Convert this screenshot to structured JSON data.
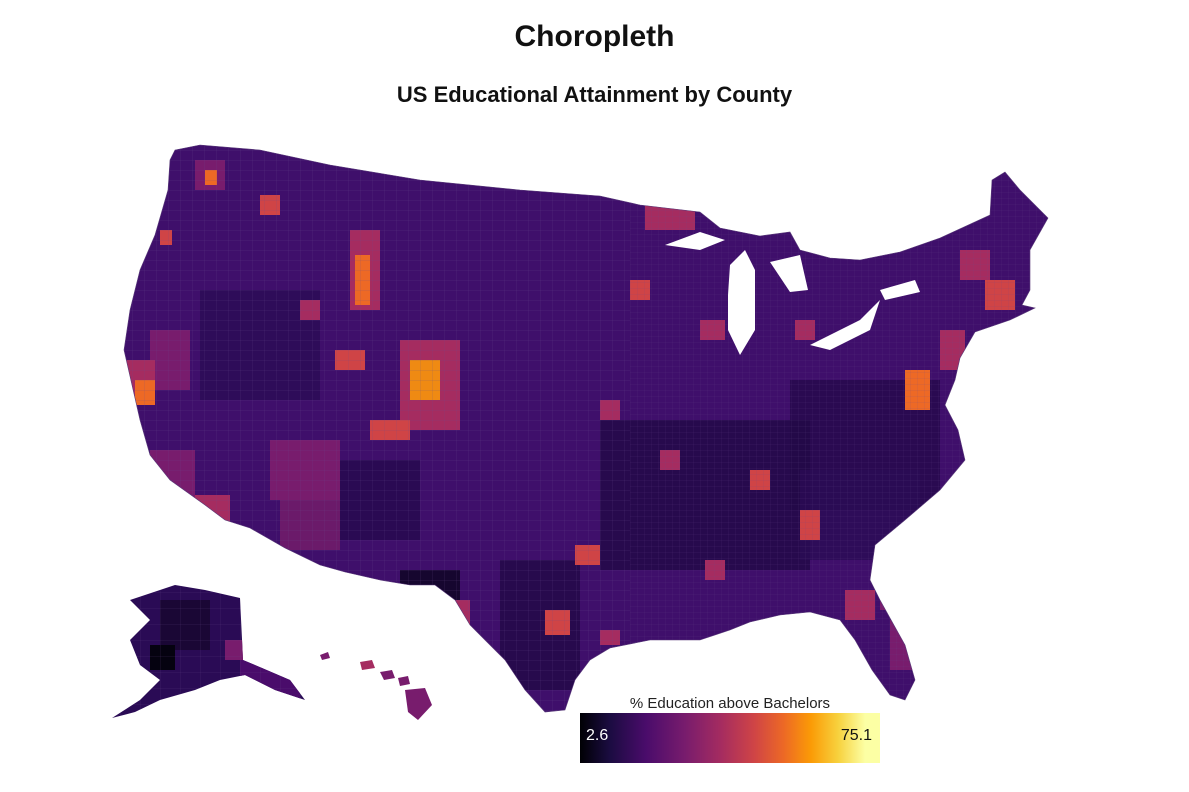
{
  "map": {
    "title": "Choropleth",
    "subtitle": "US Educational Attainment by County",
    "region": "United States counties",
    "palette": [
      "#000004",
      "#1b0c41",
      "#4a0c6b",
      "#781c6d",
      "#a52c60",
      "#cf4446",
      "#ed6925",
      "#fb9b06",
      "#f7d13d",
      "#fcffa4"
    ],
    "colors": {
      "dominant_fill": "#3f0f6b",
      "county_border": "#6a4c8c",
      "background": "#ffffff"
    },
    "legend": {
      "title": "% Education above Bachelors",
      "min_label": "2.6",
      "max_label": "75.1",
      "min": 2.6,
      "max": 75.1
    },
    "areas": [
      "Contiguous US",
      "Alaska",
      "Hawaii"
    ]
  }
}
